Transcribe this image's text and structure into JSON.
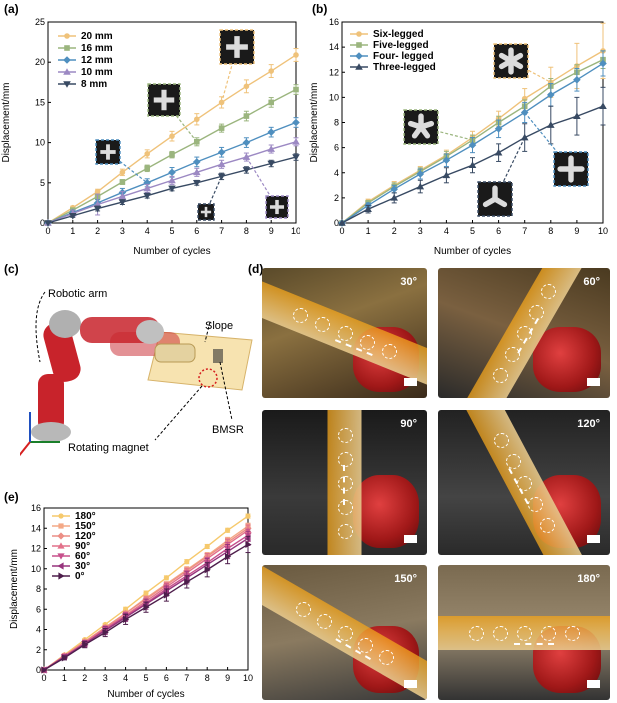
{
  "panels": {
    "a": "(a)",
    "b": "(b)",
    "c": "(c)",
    "d": "(d)",
    "e": "(e)"
  },
  "chart_data": [
    {
      "id": "a",
      "type": "line",
      "title": "",
      "xlabel": "Number of cycles",
      "ylabel": "Displacement/mm",
      "x": [
        0,
        1,
        2,
        3,
        4,
        5,
        6,
        7,
        8,
        9,
        10
      ],
      "xlim": [
        0,
        10
      ],
      "ylim": [
        0,
        25
      ],
      "xticks": [
        0,
        1,
        2,
        3,
        4,
        5,
        6,
        7,
        8,
        9,
        10
      ],
      "yticks": [
        0,
        5,
        10,
        15,
        20,
        25
      ],
      "legend": "top-left",
      "series": [
        {
          "name": "20 mm",
          "color": "#EFC27A",
          "marker": "circle",
          "values": [
            0,
            1.9,
            3.9,
            6.3,
            8.6,
            10.8,
            12.9,
            15.0,
            17.0,
            18.9,
            20.9
          ],
          "err": [
            0,
            0.2,
            0.3,
            0.4,
            0.5,
            0.6,
            0.7,
            0.7,
            0.8,
            0.8,
            0.8
          ]
        },
        {
          "name": "16 mm",
          "color": "#9BB57E",
          "marker": "square",
          "values": [
            0,
            1.6,
            3.3,
            5.1,
            6.8,
            8.5,
            10.1,
            11.8,
            13.3,
            15.0,
            16.6
          ],
          "err": [
            0,
            0.2,
            0.3,
            0.3,
            0.4,
            0.4,
            0.5,
            0.5,
            0.6,
            0.6,
            0.6
          ]
        },
        {
          "name": "12 mm",
          "color": "#4F8FBF",
          "marker": "diamond",
          "values": [
            0,
            1.3,
            2.5,
            3.8,
            5.0,
            6.3,
            7.6,
            8.8,
            10.0,
            11.3,
            12.5
          ],
          "err": [
            0,
            0.3,
            0.4,
            0.5,
            0.5,
            0.6,
            0.6,
            0.6,
            0.6,
            0.6,
            0.6
          ]
        },
        {
          "name": "10 mm",
          "color": "#9C89C3",
          "marker": "triangle-up",
          "values": [
            0,
            1.2,
            2.3,
            3.3,
            4.3,
            5.3,
            6.3,
            7.3,
            8.2,
            9.2,
            10.1
          ],
          "err": [
            0,
            0.4,
            1.3,
            0.6,
            0.5,
            0.5,
            0.5,
            0.5,
            0.5,
            0.5,
            0.5
          ]
        },
        {
          "name": "8 mm",
          "color": "#384A63",
          "marker": "triangle-down",
          "values": [
            0,
            0.9,
            1.8,
            2.6,
            3.4,
            4.3,
            5.0,
            5.8,
            6.6,
            7.4,
            8.2
          ],
          "err": [
            0,
            0.2,
            0.3,
            0.3,
            0.3,
            0.3,
            0.3,
            0.4,
            0.4,
            0.4,
            0.4
          ]
        }
      ]
    },
    {
      "id": "b",
      "type": "line",
      "title": "",
      "xlabel": "Number of cycles",
      "ylabel": "Displacement/mm",
      "x": [
        0,
        1,
        2,
        3,
        4,
        5,
        6,
        7,
        8,
        9,
        10
      ],
      "xlim": [
        0,
        10
      ],
      "ylim": [
        0,
        16
      ],
      "xticks": [
        0,
        1,
        2,
        3,
        4,
        5,
        6,
        7,
        8,
        9,
        10
      ],
      "yticks": [
        0,
        2,
        4,
        6,
        8,
        10,
        12,
        14,
        16
      ],
      "legend": "top-left",
      "series": [
        {
          "name": "Six-legged",
          "color": "#EFC27A",
          "marker": "circle",
          "values": [
            0,
            1.7,
            3.0,
            4.2,
            5.4,
            6.8,
            8.3,
            9.9,
            11.2,
            12.5,
            13.7
          ],
          "err": [
            0,
            0.2,
            0.3,
            0.3,
            0.4,
            0.5,
            0.6,
            0.8,
            1.2,
            1.8,
            2.2
          ]
        },
        {
          "name": "Five-legged",
          "color": "#9BB57E",
          "marker": "square",
          "values": [
            0,
            1.6,
            2.9,
            4.1,
            5.3,
            6.6,
            8.0,
            9.3,
            10.9,
            12.0,
            13.0
          ],
          "err": [
            0,
            0.2,
            0.3,
            0.3,
            0.4,
            0.4,
            0.5,
            0.5,
            0.6,
            0.6,
            0.7
          ]
        },
        {
          "name": "Four- legged",
          "color": "#4F8FBF",
          "marker": "diamond",
          "values": [
            0,
            1.4,
            2.7,
            3.9,
            5.0,
            6.2,
            7.5,
            8.8,
            10.2,
            11.4,
            12.7
          ],
          "err": [
            0,
            0.2,
            0.3,
            0.4,
            0.5,
            0.6,
            0.7,
            0.8,
            0.9,
            0.9,
            1.0
          ]
        },
        {
          "name": "Three-legged",
          "color": "#384A63",
          "marker": "triangle-up",
          "values": [
            0,
            1.1,
            2.0,
            2.9,
            3.8,
            4.6,
            5.6,
            6.8,
            7.8,
            8.5,
            9.3
          ],
          "err": [
            0,
            0.3,
            0.4,
            0.5,
            0.6,
            0.6,
            0.7,
            1.1,
            1.5,
            1.5,
            1.5
          ]
        }
      ]
    },
    {
      "id": "e",
      "type": "line",
      "title": "",
      "xlabel": "Number of cycles",
      "ylabel": "Displacement/mm",
      "x": [
        0,
        1,
        2,
        3,
        4,
        5,
        6,
        7,
        8,
        9,
        10
      ],
      "xlim": [
        0,
        10
      ],
      "ylim": [
        0,
        16
      ],
      "xticks": [
        0,
        1,
        2,
        3,
        4,
        5,
        6,
        7,
        8,
        9,
        10
      ],
      "yticks": [
        0,
        2,
        4,
        6,
        8,
        10,
        12,
        14,
        16
      ],
      "legend": "top-left",
      "series": [
        {
          "name": "180°",
          "color": "#F6C96C",
          "marker": "circle",
          "values": [
            0,
            1.5,
            3.0,
            4.5,
            6.0,
            7.6,
            9.1,
            10.7,
            12.2,
            13.8,
            15.2
          ],
          "err": [
            0,
            0.1,
            0.1,
            0.1,
            0.2,
            0.2,
            0.2,
            0.2,
            0.2,
            0.2,
            0.2
          ]
        },
        {
          "name": "150°",
          "color": "#F4A886",
          "marker": "square",
          "values": [
            0,
            1.4,
            2.8,
            4.2,
            5.6,
            7.1,
            8.5,
            9.9,
            11.3,
            12.8,
            14.2
          ],
          "err": [
            0,
            0.1,
            0.1,
            0.2,
            0.2,
            0.2,
            0.2,
            0.3,
            0.3,
            0.3,
            0.3
          ]
        },
        {
          "name": "120°",
          "color": "#EC8E85",
          "marker": "diamond",
          "values": [
            0,
            1.4,
            2.8,
            4.2,
            5.6,
            7.0,
            8.4,
            9.8,
            11.2,
            12.6,
            14.0
          ],
          "err": [
            0,
            0.1,
            0.2,
            0.2,
            0.2,
            0.3,
            0.3,
            0.3,
            0.3,
            0.4,
            0.4
          ]
        },
        {
          "name": "90°",
          "color": "#E2718A",
          "marker": "triangle-up",
          "values": [
            0,
            1.4,
            2.7,
            4.1,
            5.4,
            6.8,
            8.2,
            9.6,
            11.0,
            12.4,
            13.8
          ],
          "err": [
            0,
            0.2,
            0.2,
            0.3,
            0.3,
            0.4,
            0.4,
            0.4,
            0.5,
            0.5,
            0.5
          ]
        },
        {
          "name": "60°",
          "color": "#C7508C",
          "marker": "triangle-down",
          "values": [
            0,
            1.3,
            2.6,
            4.0,
            5.3,
            6.6,
            8.0,
            9.3,
            10.6,
            12.0,
            13.3
          ],
          "err": [
            0,
            0.2,
            0.3,
            0.3,
            0.4,
            0.4,
            0.5,
            0.5,
            0.5,
            0.6,
            0.6
          ]
        },
        {
          "name": "30°",
          "color": "#97347D",
          "marker": "triangle-left",
          "values": [
            0,
            1.3,
            2.6,
            3.9,
            5.2,
            6.5,
            7.8,
            9.1,
            10.4,
            11.7,
            13.0
          ],
          "err": [
            0,
            0.2,
            0.3,
            0.4,
            0.4,
            0.5,
            0.5,
            0.6,
            0.6,
            0.7,
            0.7
          ]
        },
        {
          "name": "0°",
          "color": "#4E1E4C",
          "marker": "triangle-right",
          "values": [
            0,
            1.2,
            2.5,
            3.7,
            5.0,
            6.2,
            7.4,
            8.7,
            9.9,
            11.2,
            12.4
          ],
          "err": [
            0,
            0.2,
            0.3,
            0.4,
            0.5,
            0.5,
            0.6,
            0.6,
            0.7,
            0.7,
            0.8
          ]
        }
      ]
    }
  ],
  "diagram_c": {
    "robotic_arm": "Robotic arm",
    "slope": "Slope",
    "bmsr": "BMSR",
    "rotating_magnet": "Rotating magnet"
  },
  "photos_d": [
    {
      "angle": "30°"
    },
    {
      "angle": "60°"
    },
    {
      "angle": "90°"
    },
    {
      "angle": "120°"
    },
    {
      "angle": "150°"
    },
    {
      "angle": "180°"
    }
  ],
  "colors": {
    "robot_red": "#C8232B",
    "robot_gray": "#A9A9A9",
    "slope_yellow": "#F7E3B0",
    "strip_orange": "#F2A41B"
  }
}
